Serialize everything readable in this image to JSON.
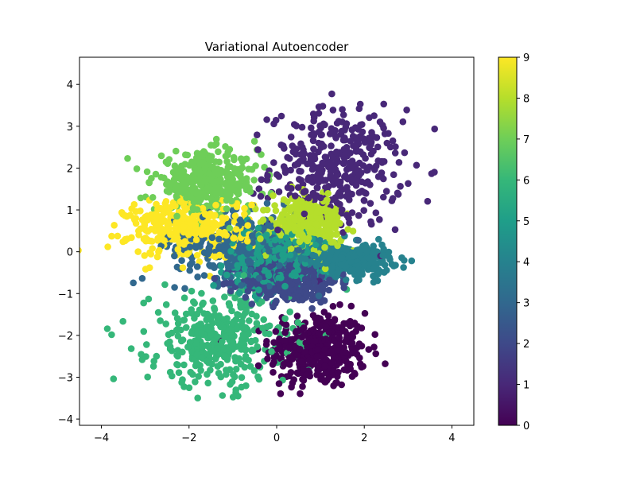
{
  "chart_data": {
    "type": "scatter",
    "title": "Variational Autoencoder",
    "xlabel": "",
    "ylabel": "",
    "xlim": [
      -4.5,
      4.5
    ],
    "ylim": [
      -4.15,
      4.65
    ],
    "xticks": [
      -4,
      -2,
      0,
      2,
      4
    ],
    "yticks": [
      -4,
      -3,
      -2,
      -1,
      0,
      1,
      2,
      3,
      4
    ],
    "grid": false,
    "colormap": "viridis",
    "colorbar": {
      "range": [
        0,
        9
      ],
      "ticks": [
        0,
        1,
        2,
        3,
        4,
        5,
        6,
        7,
        8,
        9
      ]
    },
    "clusters": [
      {
        "label": 0,
        "color": "#440154",
        "center": [
          0.95,
          -2.35
        ],
        "spread": [
          0.55,
          0.45
        ]
      },
      {
        "label": 1,
        "color": "#482878",
        "center": [
          1.35,
          2.0
        ],
        "spread": [
          0.75,
          0.7
        ]
      },
      {
        "label": 2,
        "color": "#3e4989",
        "center": [
          0.3,
          -0.7
        ],
        "spread": [
          0.55,
          0.25
        ]
      },
      {
        "label": 3,
        "color": "#31688e",
        "center": [
          -0.7,
          0.1
        ],
        "spread": [
          0.8,
          0.4
        ]
      },
      {
        "label": 4,
        "color": "#26828e",
        "center": [
          1.5,
          -0.2
        ],
        "spread": [
          0.55,
          0.2
        ]
      },
      {
        "label": 5,
        "color": "#1f9e89",
        "center": [
          -0.1,
          -0.2
        ],
        "spread": [
          0.5,
          0.35
        ]
      },
      {
        "label": 6,
        "color": "#35b779",
        "center": [
          -1.3,
          -2.1
        ],
        "spread": [
          0.8,
          0.55
        ]
      },
      {
        "label": 7,
        "color": "#6ece58",
        "center": [
          -1.6,
          1.65
        ],
        "spread": [
          0.6,
          0.35
        ]
      },
      {
        "label": 8,
        "color": "#b5de2b",
        "center": [
          0.7,
          0.65
        ],
        "spread": [
          0.4,
          0.3
        ]
      },
      {
        "label": 9,
        "color": "#fde725",
        "center": [
          -2.0,
          0.55
        ],
        "spread": [
          0.7,
          0.35
        ]
      }
    ]
  }
}
